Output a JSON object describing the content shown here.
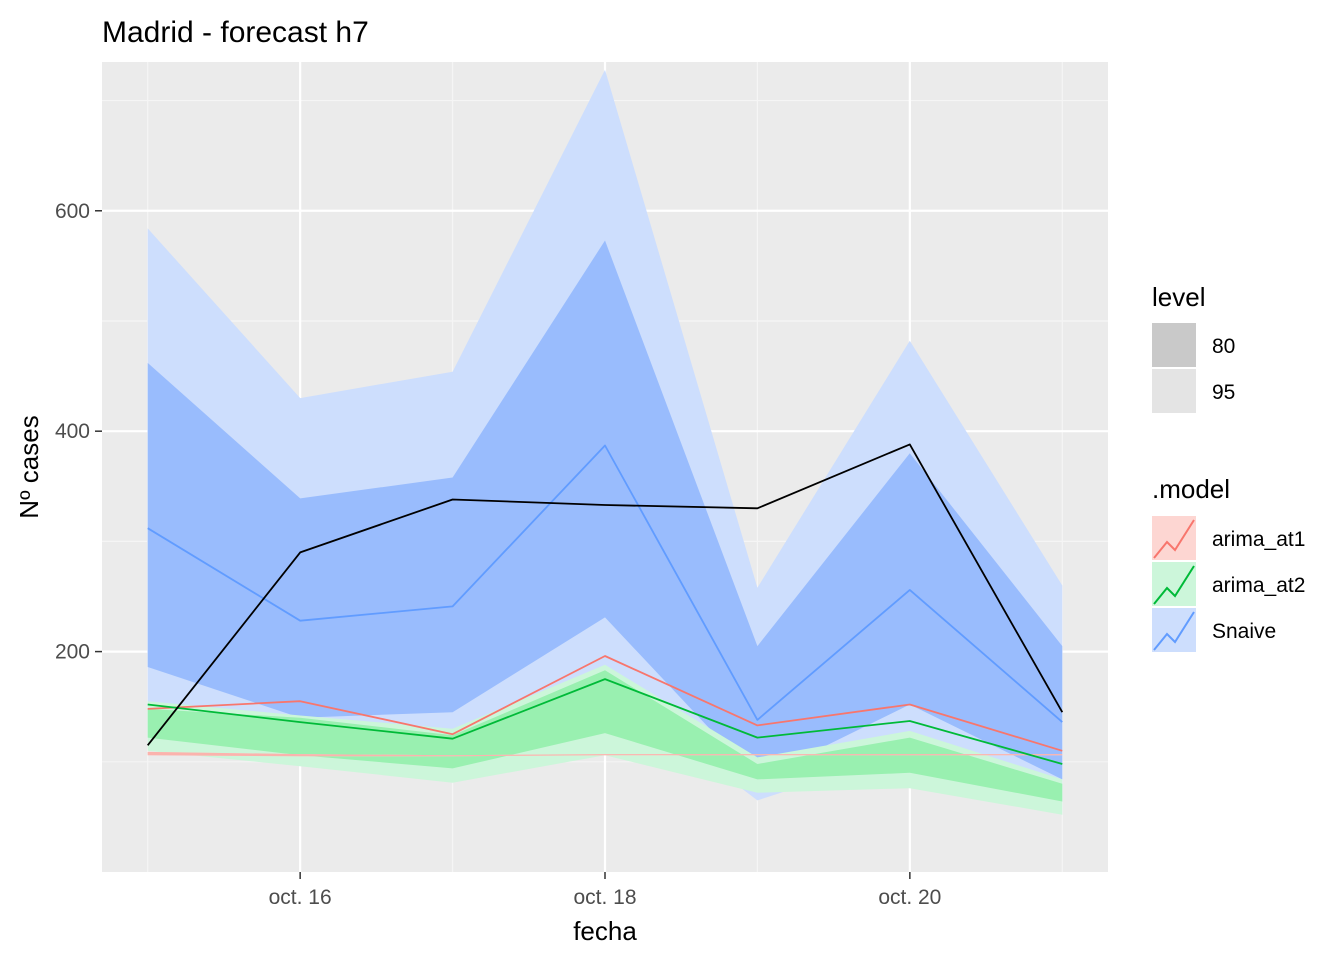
{
  "chart_data": {
    "type": "line",
    "title": "Madrid - forecast h7",
    "xlabel": "fecha",
    "ylabel": "Nº cases",
    "x_dates": [
      "oct. 15",
      "oct. 16",
      "oct. 17",
      "oct. 18",
      "oct. 19",
      "oct. 20",
      "oct. 21"
    ],
    "x_ticks": [
      {
        "x": 16,
        "label": "oct. 16"
      },
      {
        "x": 18,
        "label": "oct. 18"
      },
      {
        "x": 20,
        "label": "oct. 20"
      }
    ],
    "y_ticks": [
      200,
      400,
      600
    ],
    "xlim": [
      14.7,
      21.3
    ],
    "ylim": [
      0,
      735
    ],
    "grid": true,
    "panel_color": "#ebebeb",
    "actual": {
      "color": "#000000",
      "x": [
        15,
        16,
        17,
        18,
        19,
        20,
        21
      ],
      "values": [
        115,
        290,
        338,
        333,
        330,
        388,
        145
      ]
    },
    "series": [
      {
        "name": "Snaive",
        "color": "#619cff",
        "fill95": "#cddefd",
        "fill80": "#99bcfd",
        "x": [
          15,
          16,
          17,
          18,
          19,
          20,
          21
        ],
        "mean": [
          312,
          228,
          241,
          387,
          138,
          256,
          136
        ],
        "lo80": [
          186,
          140,
          145,
          231,
          84,
          152,
          84
        ],
        "hi80": [
          462,
          339,
          358,
          573,
          205,
          380,
          205
        ],
        "lo95": [
          118,
          105,
          120,
          170,
          65,
          110,
          64
        ],
        "hi95": [
          584,
          430,
          454,
          728,
          258,
          482,
          260
        ]
      },
      {
        "name": "arima_at2",
        "color": "#00ba38",
        "fill95": "#ccf6da",
        "fill80": "#99f0b0",
        "x": [
          15,
          16,
          17,
          18,
          19,
          20,
          21
        ],
        "mean": [
          152,
          136,
          121,
          175,
          122,
          137,
          98
        ],
        "lo80": [
          122,
          106,
          94,
          126,
          84,
          90,
          64
        ],
        "hi80": [
          148,
          140,
          124,
          183,
          98,
          122,
          80
        ],
        "lo95": [
          110,
          96,
          81,
          106,
          72,
          76,
          52
        ],
        "hi95": [
          155,
          142,
          130,
          188,
          104,
          128,
          84
        ]
      },
      {
        "name": "arima_at1",
        "color": "#f8766d",
        "fill95": "#fdd6d2",
        "fill80": "#fbb3ad",
        "x": [
          15,
          16,
          17,
          18,
          19,
          20,
          21
        ],
        "mean": [
          148,
          155,
          125,
          196,
          133,
          152,
          110
        ],
        "lo80": [
          106,
          105,
          105,
          106,
          106,
          106,
          106
        ],
        "hi80": [
          109,
          107,
          106,
          107,
          107,
          107,
          107
        ],
        "lo95": [
          106,
          105,
          105,
          106,
          106,
          106,
          106
        ],
        "hi95": [
          109,
          107,
          106,
          107,
          107,
          107,
          107
        ]
      }
    ],
    "legend": {
      "placement": "right",
      "level_title": "level",
      "levels": [
        {
          "label": "80",
          "color": "#c9c9c9"
        },
        {
          "label": "95",
          "color": "#e4e4e4"
        }
      ],
      "model_title": ".model",
      "models": [
        {
          "label": "arima_at1",
          "color": "#f8766d",
          "fill": "#fdd6d2"
        },
        {
          "label": "arima_at2",
          "color": "#00ba38",
          "fill": "#ccf6da"
        },
        {
          "label": "Snaive",
          "color": "#619cff",
          "fill": "#cddefd"
        }
      ]
    }
  }
}
